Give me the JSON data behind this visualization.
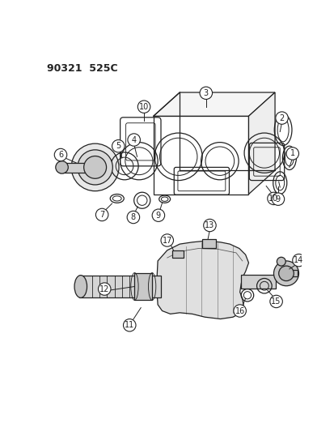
{
  "title": "90321  525C",
  "bg": "#ffffff",
  "lc": "#222222",
  "lw": 0.9,
  "fig_w": 4.14,
  "fig_h": 5.33,
  "dpi": 100
}
